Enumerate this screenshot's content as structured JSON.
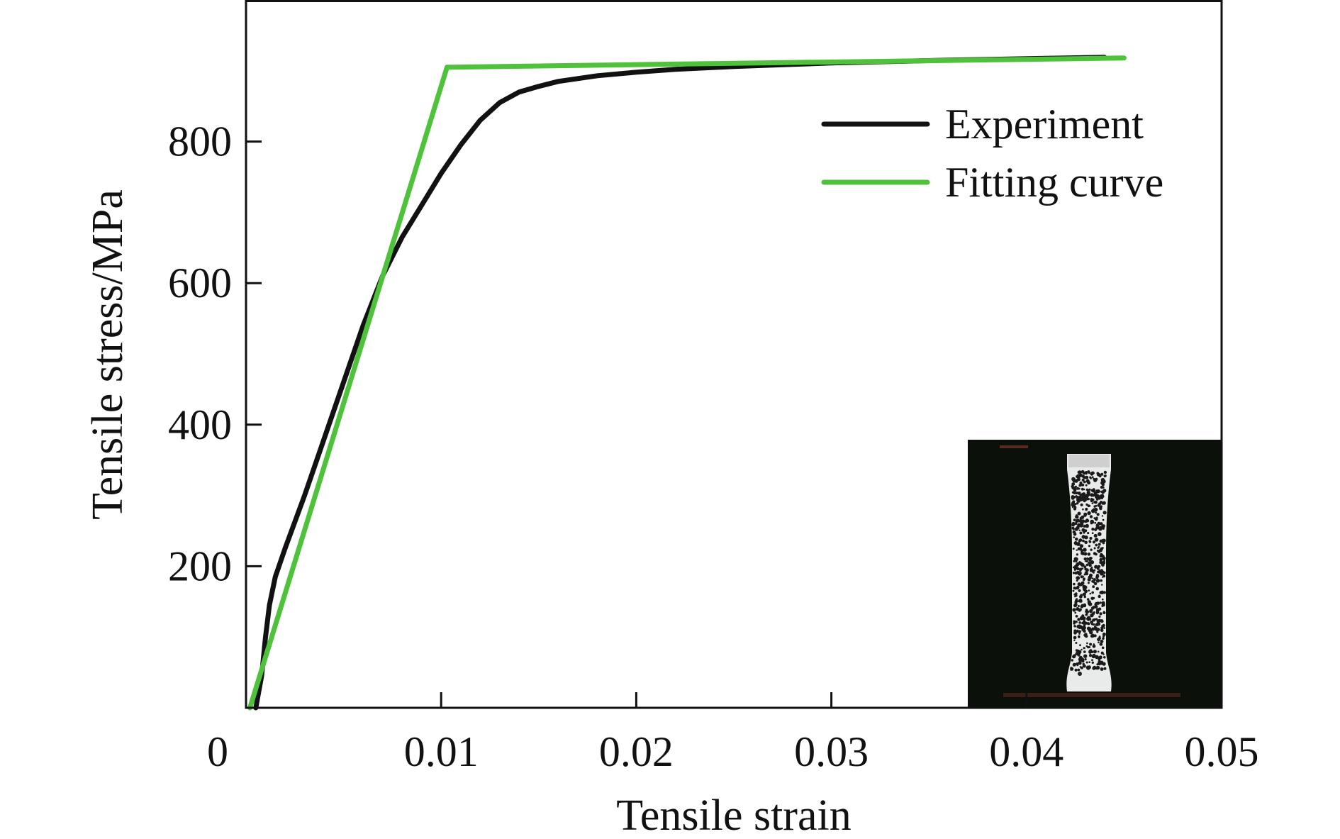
{
  "chart_data": {
    "type": "line",
    "title": "",
    "xlabel": "Tensile strain",
    "ylabel": "Tensile stress/MPa",
    "xlim": [
      0,
      0.05
    ],
    "ylim": [
      0,
      1000
    ],
    "x_ticks": [
      {
        "value": 0,
        "label": "0"
      },
      {
        "value": 0.01,
        "label": "0.01"
      },
      {
        "value": 0.02,
        "label": "0.02"
      },
      {
        "value": 0.03,
        "label": "0.03"
      },
      {
        "value": 0.04,
        "label": "0.04"
      },
      {
        "value": 0.05,
        "label": "0.05"
      }
    ],
    "y_ticks": [
      {
        "value": 200,
        "label": "200"
      },
      {
        "value": 400,
        "label": "400"
      },
      {
        "value": 600,
        "label": "600"
      },
      {
        "value": 800,
        "label": "800"
      }
    ],
    "grid": false,
    "legend_position": "top-right",
    "series": [
      {
        "name": "Experiment",
        "color": "#111111",
        "x": [
          0.0005,
          0.0008,
          0.001,
          0.0012,
          0.0015,
          0.002,
          0.003,
          0.004,
          0.005,
          0.006,
          0.007,
          0.008,
          0.009,
          0.01,
          0.011,
          0.012,
          0.013,
          0.014,
          0.015,
          0.016,
          0.018,
          0.02,
          0.022,
          0.025,
          0.028,
          0.03,
          0.033,
          0.036,
          0.04,
          0.044
        ],
        "y": [
          0,
          45,
          100,
          145,
          185,
          225,
          300,
          380,
          460,
          540,
          610,
          665,
          710,
          755,
          795,
          830,
          855,
          870,
          878,
          885,
          893,
          898,
          902,
          906,
          909,
          911,
          913,
          915,
          917,
          919
        ]
      },
      {
        "name": "Fitting curve",
        "color": "#4ec23b",
        "x": [
          0.0002,
          0.0103,
          0.045
        ],
        "y": [
          0,
          905,
          918
        ]
      }
    ],
    "inset_image": "tensile-specimen-photo"
  }
}
